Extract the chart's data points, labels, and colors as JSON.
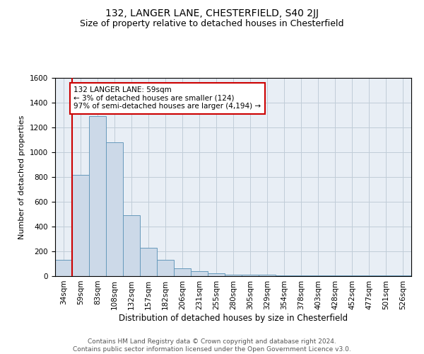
{
  "title1": "132, LANGER LANE, CHESTERFIELD, S40 2JJ",
  "title2": "Size of property relative to detached houses in Chesterfield",
  "xlabel": "Distribution of detached houses by size in Chesterfield",
  "ylabel": "Number of detached properties",
  "categories": [
    "34sqm",
    "59sqm",
    "83sqm",
    "108sqm",
    "132sqm",
    "157sqm",
    "182sqm",
    "206sqm",
    "231sqm",
    "255sqm",
    "280sqm",
    "305sqm",
    "329sqm",
    "354sqm",
    "378sqm",
    "403sqm",
    "428sqm",
    "452sqm",
    "477sqm",
    "501sqm",
    "526sqm"
  ],
  "values": [
    130,
    820,
    1290,
    1080,
    490,
    230,
    130,
    65,
    38,
    22,
    12,
    12,
    12,
    5,
    5,
    5,
    5,
    5,
    5,
    5,
    5
  ],
  "bar_color": "#ccd9e8",
  "bar_edge_color": "#6699bb",
  "annotation_text": "132 LANGER LANE: 59sqm\n← 3% of detached houses are smaller (124)\n97% of semi-detached houses are larger (4,194) →",
  "annotation_box_color": "#ffffff",
  "annotation_box_edge": "#cc0000",
  "vline_color": "#cc0000",
  "vline_x": 1,
  "ylim": [
    0,
    1600
  ],
  "yticks": [
    0,
    200,
    400,
    600,
    800,
    1000,
    1200,
    1400,
    1600
  ],
  "grid_color": "#c0ccd8",
  "background_color": "#e8eef5",
  "footer_text": "Contains HM Land Registry data © Crown copyright and database right 2024.\nContains public sector information licensed under the Open Government Licence v3.0.",
  "title1_fontsize": 10,
  "title2_fontsize": 9,
  "xlabel_fontsize": 8.5,
  "ylabel_fontsize": 8,
  "tick_fontsize": 7.5,
  "annotation_fontsize": 7.5,
  "footer_fontsize": 6.5
}
